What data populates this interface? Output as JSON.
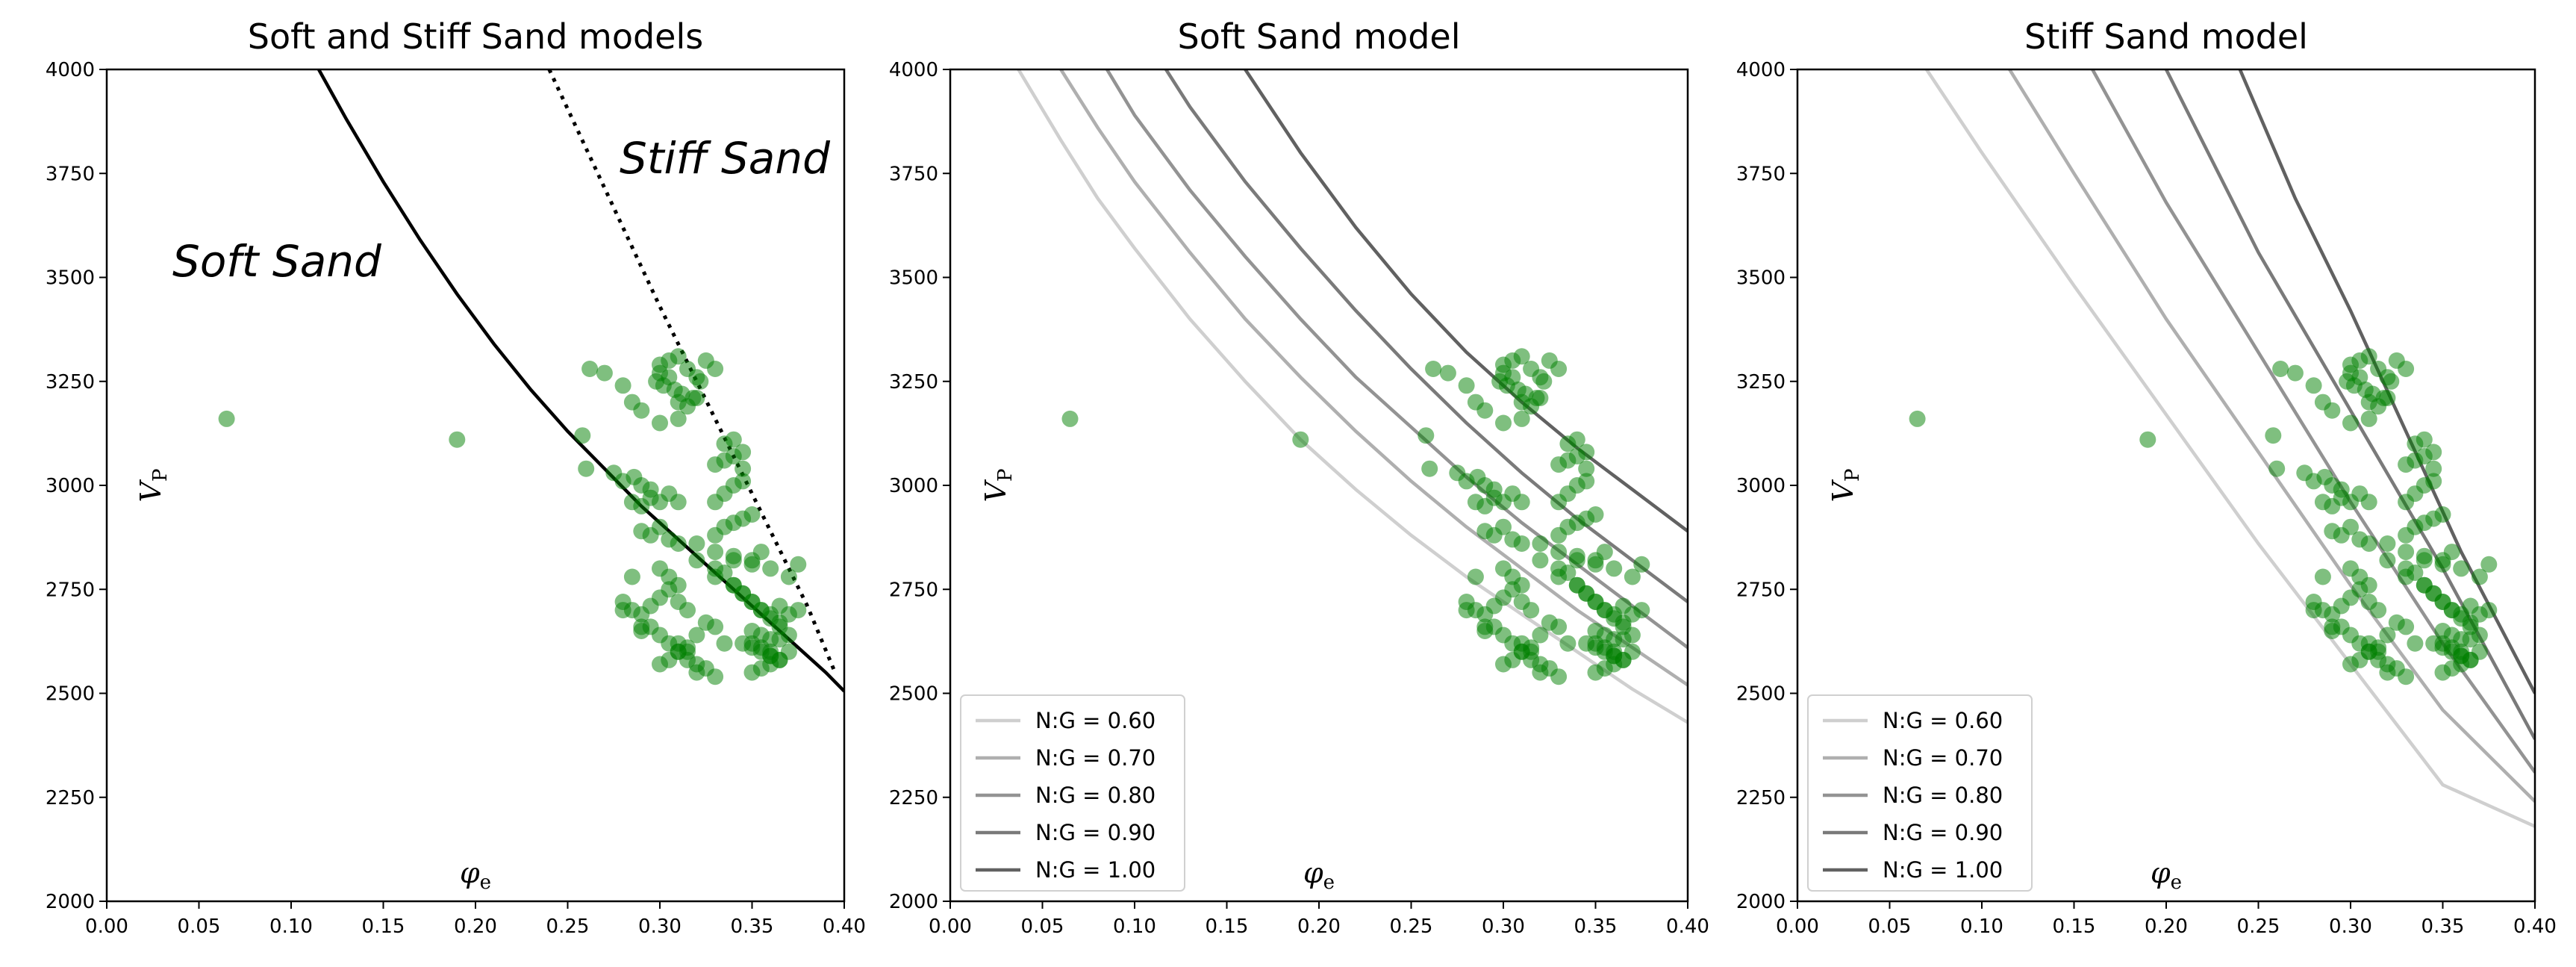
{
  "chart_data": [
    {
      "type": "line",
      "panel": "combined",
      "title": "Soft and Stiff Sand models",
      "xlabel": "φ",
      "xlabel_sub": "e",
      "ylabel": "V",
      "ylabel_sub": "P",
      "xlim": [
        0.0,
        0.4
      ],
      "ylim": [
        2000,
        4000
      ],
      "xticks": [
        "0.00",
        "0.05",
        "0.10",
        "0.15",
        "0.20",
        "0.25",
        "0.30",
        "0.35",
        "0.40"
      ],
      "yticks": [
        "2000",
        "2250",
        "2500",
        "2750",
        "3000",
        "3250",
        "3500",
        "3750",
        "4000"
      ],
      "grid": false,
      "series": [
        {
          "style": "solid",
          "color": "#000000",
          "x": [
            0.115,
            0.13,
            0.15,
            0.17,
            0.19,
            0.21,
            0.23,
            0.25,
            0.27,
            0.29,
            0.31,
            0.33,
            0.35,
            0.37,
            0.39,
            0.4
          ],
          "y": [
            4000,
            3880,
            3730,
            3590,
            3460,
            3340,
            3230,
            3130,
            3040,
            2950,
            2870,
            2790,
            2710,
            2630,
            2550,
            2505
          ]
        },
        {
          "style": "dotted",
          "color": "#000000",
          "x": [
            0.24,
            0.26,
            0.28,
            0.3,
            0.32,
            0.34,
            0.36,
            0.38,
            0.395
          ],
          "y": [
            4000,
            3810,
            3620,
            3430,
            3250,
            3070,
            2890,
            2710,
            2550
          ]
        }
      ],
      "annotations": [
        {
          "text": "Soft Sand",
          "x": 0.035,
          "y": 3500
        },
        {
          "text": "Stiff Sand",
          "x": 0.28,
          "y": 3750
        }
      ]
    },
    {
      "type": "line",
      "panel": "soft",
      "title": "Soft Sand model",
      "xlabel": "φ",
      "xlabel_sub": "e",
      "ylabel": "V",
      "ylabel_sub": "P",
      "xlim": [
        0.0,
        0.4
      ],
      "ylim": [
        2000,
        4000
      ],
      "xticks": [
        "0.00",
        "0.05",
        "0.10",
        "0.15",
        "0.20",
        "0.25",
        "0.30",
        "0.35",
        "0.40"
      ],
      "yticks": [
        "2000",
        "2250",
        "2500",
        "2750",
        "3000",
        "3250",
        "3500",
        "3750",
        "4000"
      ],
      "grid": false,
      "legend": "lower-left",
      "series": [
        {
          "name": "N:G = 0.60",
          "color": "#cfcfcf",
          "x": [
            0.037,
            0.06,
            0.08,
            0.1,
            0.13,
            0.16,
            0.19,
            0.22,
            0.25,
            0.28,
            0.31,
            0.34,
            0.37,
            0.4
          ],
          "y": [
            4000,
            3830,
            3690,
            3570,
            3400,
            3250,
            3110,
            2990,
            2880,
            2780,
            2690,
            2600,
            2510,
            2430
          ]
        },
        {
          "name": "N:G = 0.70",
          "color": "#afafaf",
          "x": [
            0.06,
            0.08,
            0.1,
            0.13,
            0.16,
            0.19,
            0.22,
            0.25,
            0.28,
            0.31,
            0.34,
            0.37,
            0.4
          ],
          "y": [
            4000,
            3860,
            3730,
            3560,
            3400,
            3260,
            3130,
            3010,
            2900,
            2800,
            2700,
            2610,
            2520
          ]
        },
        {
          "name": "N:G = 0.80",
          "color": "#939393",
          "x": [
            0.085,
            0.1,
            0.13,
            0.16,
            0.19,
            0.22,
            0.25,
            0.28,
            0.31,
            0.34,
            0.37,
            0.4
          ],
          "y": [
            4000,
            3890,
            3710,
            3550,
            3400,
            3260,
            3140,
            3020,
            2910,
            2810,
            2710,
            2610
          ]
        },
        {
          "name": "N:G = 0.90",
          "color": "#7a7a7a",
          "x": [
            0.117,
            0.13,
            0.16,
            0.19,
            0.22,
            0.25,
            0.28,
            0.31,
            0.34,
            0.37,
            0.4
          ],
          "y": [
            4000,
            3910,
            3730,
            3570,
            3420,
            3280,
            3150,
            3030,
            2920,
            2820,
            2720
          ]
        },
        {
          "name": "N:G = 1.00",
          "color": "#616161",
          "x": [
            0.16,
            0.19,
            0.22,
            0.25,
            0.28,
            0.31,
            0.34,
            0.37,
            0.4
          ],
          "y": [
            4000,
            3800,
            3620,
            3460,
            3320,
            3200,
            3090,
            2990,
            2890
          ]
        }
      ]
    },
    {
      "type": "line",
      "panel": "stiff",
      "title": "Stiff Sand model",
      "xlabel": "φ",
      "xlabel_sub": "e",
      "ylabel": "V",
      "ylabel_sub": "P",
      "xlim": [
        0.0,
        0.4
      ],
      "ylim": [
        2000,
        4000
      ],
      "xticks": [
        "0.00",
        "0.05",
        "0.10",
        "0.15",
        "0.20",
        "0.25",
        "0.30",
        "0.35",
        "0.40"
      ],
      "yticks": [
        "2000",
        "2250",
        "2500",
        "2750",
        "3000",
        "3250",
        "3500",
        "3750",
        "4000"
      ],
      "grid": false,
      "legend": "lower-left",
      "series": [
        {
          "name": "N:G = 0.60",
          "color": "#cfcfcf",
          "x": [
            0.07,
            0.1,
            0.15,
            0.2,
            0.25,
            0.3,
            0.35,
            0.4
          ],
          "y": [
            4000,
            3800,
            3480,
            3170,
            2860,
            2570,
            2280,
            2180
          ]
        },
        {
          "name": "N:G = 0.70",
          "color": "#afafaf",
          "x": [
            0.115,
            0.15,
            0.2,
            0.25,
            0.3,
            0.35,
            0.4
          ],
          "y": [
            4000,
            3750,
            3400,
            3080,
            2760,
            2460,
            2240
          ]
        },
        {
          "name": "N:G = 0.80",
          "color": "#939393",
          "x": [
            0.16,
            0.2,
            0.25,
            0.3,
            0.35,
            0.4
          ],
          "y": [
            4000,
            3680,
            3320,
            2960,
            2620,
            2310
          ]
        },
        {
          "name": "N:G = 0.90",
          "color": "#7a7a7a",
          "x": [
            0.2,
            0.25,
            0.3,
            0.35,
            0.4
          ],
          "y": [
            4000,
            3560,
            3180,
            2800,
            2390
          ]
        },
        {
          "name": "N:G = 1.00",
          "color": "#616161",
          "x": [
            0.24,
            0.27,
            0.3,
            0.33,
            0.36,
            0.4
          ],
          "y": [
            4000,
            3690,
            3420,
            3130,
            2840,
            2500
          ]
        }
      ]
    }
  ],
  "scatter_data": {
    "color": "#008000",
    "opacity": 0.5,
    "x": [
      0.065,
      0.19,
      0.258,
      0.26,
      0.262,
      0.27,
      0.28,
      0.285,
      0.29,
      0.275,
      0.28,
      0.286,
      0.29,
      0.295,
      0.3,
      0.305,
      0.31,
      0.315,
      0.32,
      0.325,
      0.33,
      0.298,
      0.302,
      0.308,
      0.312,
      0.318,
      0.322,
      0.3,
      0.305,
      0.31,
      0.315,
      0.32,
      0.3,
      0.31,
      0.285,
      0.29,
      0.295,
      0.3,
      0.305,
      0.31,
      0.29,
      0.295,
      0.3,
      0.305,
      0.31,
      0.3,
      0.305,
      0.31,
      0.32,
      0.33,
      0.34,
      0.33,
      0.335,
      0.34,
      0.345,
      0.335,
      0.34,
      0.345,
      0.33,
      0.335,
      0.34,
      0.345,
      0.33,
      0.335,
      0.34,
      0.345,
      0.35,
      0.28,
      0.285,
      0.29,
      0.295,
      0.3,
      0.305,
      0.31,
      0.315,
      0.29,
      0.295,
      0.3,
      0.305,
      0.31,
      0.315,
      0.32,
      0.33,
      0.335,
      0.34,
      0.345,
      0.35,
      0.355,
      0.36,
      0.365,
      0.37,
      0.375,
      0.35,
      0.355,
      0.36,
      0.365,
      0.37,
      0.36,
      0.365,
      0.37,
      0.34,
      0.345,
      0.35,
      0.355,
      0.36,
      0.365,
      0.35,
      0.355,
      0.36,
      0.365,
      0.345,
      0.35,
      0.355,
      0.36,
      0.35,
      0.355,
      0.36,
      0.365,
      0.35,
      0.355,
      0.36,
      0.32,
      0.325,
      0.33,
      0.335,
      0.31,
      0.315,
      0.32,
      0.325,
      0.33,
      0.3,
      0.305,
      0.31,
      0.315,
      0.28,
      0.285,
      0.29,
      0.32,
      0.33,
      0.34,
      0.35,
      0.37,
      0.375
    ],
    "y": [
      3160,
      3110,
      3120,
      3040,
      3280,
      3270,
      3240,
      3200,
      3180,
      3030,
      3010,
      3020,
      3000,
      2990,
      3290,
      3300,
      3310,
      3280,
      3260,
      3300,
      3280,
      3250,
      3240,
      3230,
      3220,
      3210,
      3250,
      3270,
      3260,
      3200,
      3190,
      3210,
      3150,
      3160,
      2960,
      2950,
      2970,
      2960,
      2980,
      2960,
      2890,
      2880,
      2900,
      2870,
      2860,
      2800,
      2780,
      2760,
      2820,
      2800,
      2830,
      3050,
      3060,
      3070,
      3080,
      3100,
      3110,
      3040,
      2960,
      2980,
      3000,
      3010,
      2880,
      2900,
      2910,
      2920,
      2930,
      2720,
      2700,
      2690,
      2710,
      2730,
      2750,
      2720,
      2700,
      2650,
      2660,
      2640,
      2620,
      2600,
      2580,
      2570,
      2780,
      2790,
      2760,
      2740,
      2720,
      2700,
      2680,
      2670,
      2690,
      2700,
      2620,
      2610,
      2600,
      2630,
      2640,
      2590,
      2580,
      2600,
      2760,
      2740,
      2720,
      2700,
      2690,
      2710,
      2650,
      2640,
      2630,
      2660,
      2620,
      2610,
      2600,
      2590,
      2550,
      2560,
      2570,
      2580,
      2820,
      2840,
      2800,
      2550,
      2560,
      2540,
      2620,
      2620,
      2600,
      2640,
      2670,
      2660,
      2570,
      2580,
      2600,
      2610,
      2700,
      2780,
      2660,
      2860,
      2840,
      2820,
      2810,
      2780,
      2810
    ]
  }
}
